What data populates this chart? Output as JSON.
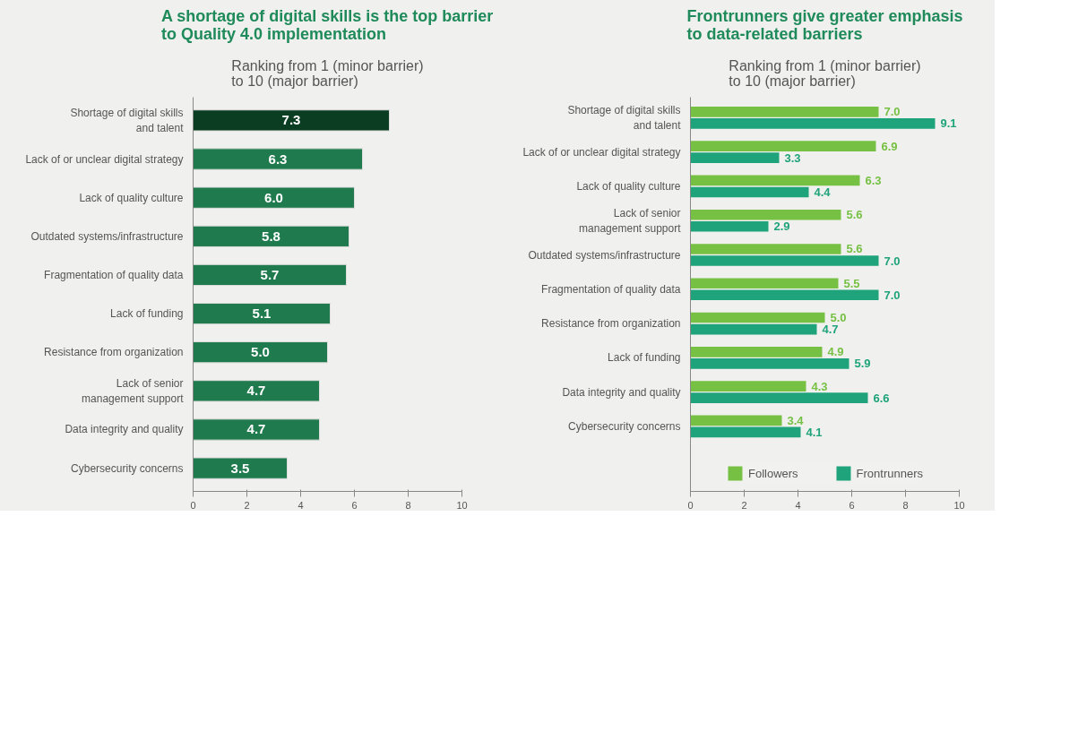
{
  "chart_data": [
    {
      "type": "bar",
      "orientation": "horizontal",
      "title": "A shortage of digital skills is the top barrier\nto Quality 4.0 implementation",
      "subtitle": "Ranking from 1 (minor barrier)\nto 10 (major barrier)",
      "categories": [
        "Shortage of digital skills\nand talent",
        "Lack of or unclear digital strategy",
        "Lack of quality culture",
        "Outdated systems/infrastructure",
        "Fragmentation of quality data",
        "Lack of funding",
        "Resistance from organization",
        "Lack of senior\nmanagement support",
        "Data integrity and quality",
        "Cybersecurity concerns"
      ],
      "values": [
        7.3,
        6.3,
        6.0,
        5.8,
        5.7,
        5.1,
        5.0,
        4.7,
        4.7,
        3.5
      ],
      "value_labels": [
        "7.3",
        "6.3",
        "6.0",
        "5.8",
        "5.7",
        "5.1",
        "5.0",
        "4.7",
        "4.7",
        "3.5"
      ],
      "colors": [
        "#0b3d22",
        "#1f7a4d",
        "#1f7a4d",
        "#1f7a4d",
        "#1f7a4d",
        "#1f7a4d",
        "#1f7a4d",
        "#1f7a4d",
        "#1f7a4d",
        "#1f7a4d"
      ],
      "xlim": [
        0,
        10
      ],
      "xticks": [
        0,
        2,
        4,
        6,
        8,
        10
      ],
      "grid": false
    },
    {
      "type": "bar",
      "orientation": "horizontal",
      "title": "Frontrunners give greater emphasis\nto data-related barriers",
      "subtitle": "Ranking from 1 (minor barrier)\nto 10 (major barrier)",
      "categories": [
        "Shortage of digital skills\nand talent",
        "Lack of or unclear digital strategy",
        "Lack of quality culture",
        "Lack of senior\nmanagement support",
        "Outdated systems/infrastructure",
        "Fragmentation of quality data",
        "Resistance from organization",
        "Lack of funding",
        "Data integrity and quality",
        "Cybersecurity concerns"
      ],
      "series": [
        {
          "name": "Followers",
          "color": "#76c043",
          "values": [
            7.0,
            6.9,
            6.3,
            5.6,
            5.6,
            5.5,
            5.0,
            4.9,
            4.3,
            3.4
          ],
          "value_labels": [
            "7.0",
            "6.9",
            "6.3",
            "5.6",
            "5.6",
            "5.5",
            "5.0",
            "4.9",
            "4.3",
            "3.4"
          ]
        },
        {
          "name": "Frontrunners",
          "color": "#1fa37a",
          "values": [
            9.1,
            3.3,
            4.4,
            2.9,
            7.0,
            7.0,
            4.7,
            5.9,
            6.6,
            4.1
          ],
          "value_labels": [
            "9.1",
            "3.3",
            "4.4",
            "2.9",
            "7.0",
            "7.0",
            "4.7",
            "5.9",
            "6.6",
            "4.1"
          ]
        }
      ],
      "xlim": [
        0,
        10
      ],
      "xticks": [
        0,
        2,
        4,
        6,
        8,
        10
      ],
      "grid": false,
      "legend": "bottom"
    }
  ]
}
